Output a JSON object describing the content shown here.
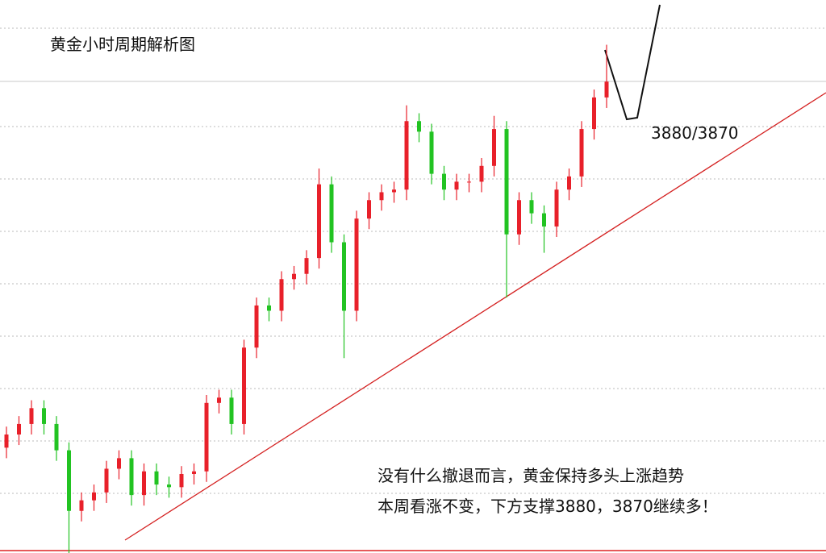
{
  "chart_data": {
    "type": "candlestick",
    "title": "黄金小时周期解析图",
    "annotations": [
      "3880/3870",
      "没有什么撤退而言，黄金保持多头上涨趋势",
      "本周看涨不变，下方支撑3880，3870继续多！"
    ],
    "ylim": [
      3700,
      3910
    ],
    "up_color": "#e8202a",
    "down_color": "#22c322",
    "open": [
      3740,
      3745,
      3749,
      3755,
      3749,
      3739,
      3716,
      3720,
      3723,
      3732,
      3736,
      3722,
      3731,
      3726,
      3725,
      3730,
      3731,
      3757,
      3759,
      3749,
      3778,
      3794,
      3792,
      3804,
      3806,
      3812,
      3840,
      3818,
      3792,
      3827,
      3834,
      3837,
      3838,
      3864,
      3860,
      3844,
      3838,
      3841,
      3841,
      3847,
      3861,
      3821,
      3834,
      3829,
      3824,
      3838,
      3843,
      3861,
      3873
    ],
    "high": [
      3748,
      3752,
      3758,
      3758,
      3752,
      3742,
      3723,
      3726,
      3735,
      3739,
      3739,
      3734,
      3734,
      3729,
      3733,
      3734,
      3760,
      3762,
      3762,
      3781,
      3797,
      3797,
      3807,
      3809,
      3815,
      3846,
      3843,
      3821,
      3830,
      3837,
      3840,
      3841,
      3870,
      3867,
      3863,
      3847,
      3844,
      3844,
      3850,
      3866,
      3864,
      3837,
      3837,
      3832,
      3841,
      3846,
      3864,
      3876,
      3893
    ],
    "low": [
      3736,
      3741,
      3745,
      3745,
      3735,
      3700,
      3712,
      3716,
      3719,
      3728,
      3718,
      3718,
      3722,
      3721,
      3721,
      3726,
      3727,
      3753,
      3745,
      3745,
      3774,
      3788,
      3788,
      3800,
      3802,
      3808,
      3814,
      3774,
      3788,
      3823,
      3830,
      3833,
      3834,
      3856,
      3840,
      3834,
      3834,
      3837,
      3837,
      3843,
      3797,
      3817,
      3825,
      3814,
      3820,
      3834,
      3839,
      3857,
      3869
    ],
    "close": [
      3745,
      3749,
      3755,
      3749,
      3739,
      3716,
      3720,
      3723,
      3732,
      3736,
      3722,
      3731,
      3726,
      3725,
      3730,
      3731,
      3757,
      3759,
      3749,
      3778,
      3794,
      3792,
      3804,
      3806,
      3812,
      3840,
      3818,
      3792,
      3827,
      3834,
      3837,
      3838,
      3864,
      3860,
      3844,
      3838,
      3841,
      3841,
      3847,
      3861,
      3821,
      3834,
      3829,
      3824,
      3838,
      3843,
      3861,
      3873,
      3879
    ]
  }
}
